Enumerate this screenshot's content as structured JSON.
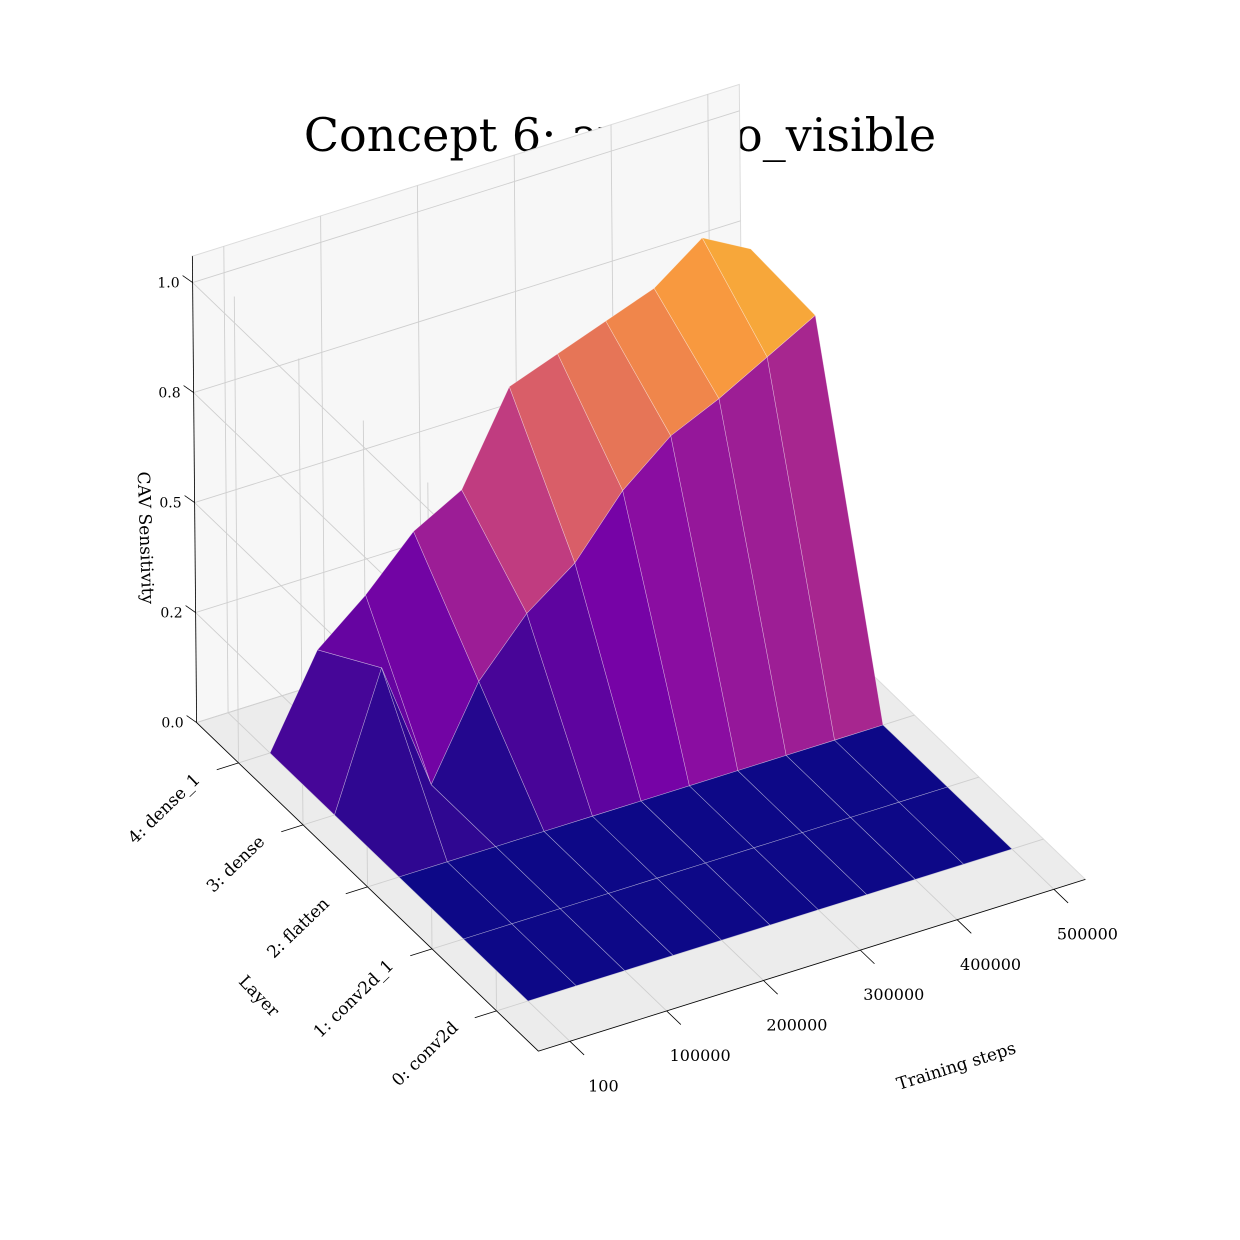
{
  "chart_data": {
    "type": "surface3d",
    "title": "Concept 6: avocado_visible",
    "xlabel": "Training steps",
    "ylabel": "Layer",
    "zlabel": "CAV Sensitivity",
    "x": [
      100,
      50000,
      100000,
      150000,
      200000,
      250000,
      300000,
      350000,
      400000,
      450000,
      500000
    ],
    "x_ticks": [
      100,
      100000,
      200000,
      300000,
      400000,
      500000
    ],
    "y_ticks": [
      "0: conv2d",
      "1: conv2d_1",
      "2: flatten",
      "3: dense",
      "4: dense_1"
    ],
    "z_ticks": [
      "0.0",
      "0.2",
      "0.5",
      "0.8",
      "1.0"
    ],
    "zlim": [
      0,
      1
    ],
    "grid": true,
    "colormap": "plasma",
    "series": [
      {
        "name": "0: conv2d",
        "values": [
          0,
          0,
          0,
          0,
          0,
          0,
          0,
          0,
          0,
          0,
          0
        ]
      },
      {
        "name": "1: conv2d_1",
        "values": [
          0,
          0,
          0,
          0,
          0,
          0,
          0,
          0,
          0,
          0,
          0
        ]
      },
      {
        "name": "2: flatten",
        "values": [
          0,
          0,
          0,
          0,
          0,
          0,
          0,
          0,
          0,
          0,
          0
        ]
      },
      {
        "name": "3: dense",
        "values": [
          0,
          0.3,
          0,
          0.2,
          0.32,
          0.4,
          0.53,
          0.62,
          0.67,
          0.73,
          0.79
        ]
      },
      {
        "name": "4: dense_1",
        "values": [
          0,
          0.2,
          0.29,
          0.4,
          0.46,
          0.66,
          0.7,
          0.74,
          0.78,
          0.86,
          0.8
        ]
      }
    ]
  }
}
